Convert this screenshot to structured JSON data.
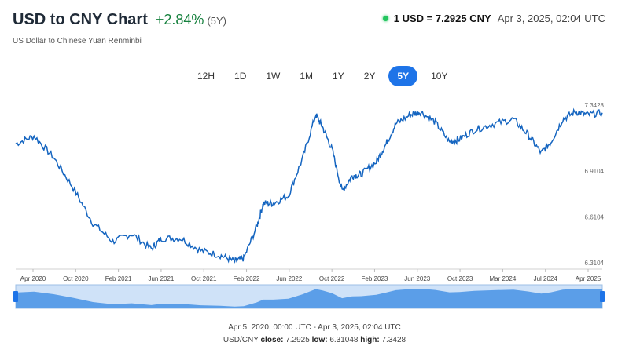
{
  "header": {
    "title": "USD to CNY Chart",
    "change": "+2.84%",
    "period": "(5Y)",
    "subtitle": "US Dollar to Chinese Yuan Renminbi"
  },
  "rate": {
    "value": "1 USD = 7.2925 CNY",
    "time": "Apr 3, 2025, 02:04 UTC"
  },
  "ranges": [
    {
      "label": "12H",
      "active": false
    },
    {
      "label": "1D",
      "active": false
    },
    {
      "label": "1W",
      "active": false
    },
    {
      "label": "1M",
      "active": false
    },
    {
      "label": "1Y",
      "active": false
    },
    {
      "label": "2Y",
      "active": false
    },
    {
      "label": "5Y",
      "active": true
    },
    {
      "label": "10Y",
      "active": false
    }
  ],
  "footer": {
    "range_text": "Apr 5, 2020, 00:00 UTC - Apr 3, 2025, 02:04 UTC",
    "pair": "USD/CNY",
    "close_label": "close:",
    "close": "7.2925",
    "low_label": "low:",
    "low": "6.31048",
    "high_label": "high:",
    "high": "7.3428"
  },
  "colors": {
    "line": "#1565c0",
    "navigator_fill": "#5b9ee8",
    "navigator_bg": "#cfe2f8",
    "active_button": "#1e74e8",
    "positive": "#15803d"
  },
  "chart_data": {
    "type": "line",
    "title": "",
    "xlabel": "",
    "ylabel": "",
    "x_ticks": [
      "Apr 2020",
      "Oct 2020",
      "Feb 2021",
      "Jun 2021",
      "Oct 2021",
      "Feb 2022",
      "Jun 2022",
      "Oct 2022",
      "Feb 2023",
      "Jun 2023",
      "Oct 2023",
      "Mar 2024",
      "Jul 2024",
      "Apr 2025"
    ],
    "y_ticks": [
      "7.3428",
      "6.9104",
      "6.6104",
      "6.3104"
    ],
    "ylim": [
      6.3104,
      7.3428
    ],
    "x": [
      "2020-04-05",
      "2020-06-01",
      "2020-08-01",
      "2020-10-01",
      "2020-12-01",
      "2021-02-01",
      "2021-04-01",
      "2021-06-01",
      "2021-07-01",
      "2021-09-01",
      "2021-11-01",
      "2022-01-01",
      "2022-02-15",
      "2022-03-15",
      "2022-04-25",
      "2022-05-15",
      "2022-06-15",
      "2022-08-01",
      "2022-09-15",
      "2022-10-25",
      "2022-11-15",
      "2022-12-15",
      "2023-01-15",
      "2023-02-15",
      "2023-03-15",
      "2023-05-01",
      "2023-06-01",
      "2023-07-01",
      "2023-08-15",
      "2023-09-15",
      "2023-11-01",
      "2023-12-15",
      "2024-01-15",
      "2024-03-01",
      "2024-05-01",
      "2024-07-01",
      "2024-08-15",
      "2024-09-25",
      "2024-10-25",
      "2024-12-01",
      "2025-01-10",
      "2025-02-15",
      "2025-04-03"
    ],
    "series": [
      {
        "values": [
          7.09,
          7.14,
          7.0,
          6.8,
          6.57,
          6.45,
          6.5,
          6.4,
          6.47,
          6.47,
          6.39,
          6.36,
          6.32,
          6.34,
          6.55,
          6.7,
          6.7,
          6.75,
          7.0,
          7.28,
          7.2,
          7.05,
          6.78,
          6.88,
          6.89,
          6.97,
          7.09,
          7.22,
          7.28,
          7.3,
          7.23,
          7.1,
          7.12,
          7.18,
          7.22,
          7.25,
          7.15,
          7.03,
          7.1,
          7.25,
          7.3,
          7.28,
          7.2925
        ]
      }
    ],
    "navigator": {
      "range": [
        "Apr 5, 2020",
        "Apr 3, 2025"
      ]
    }
  }
}
